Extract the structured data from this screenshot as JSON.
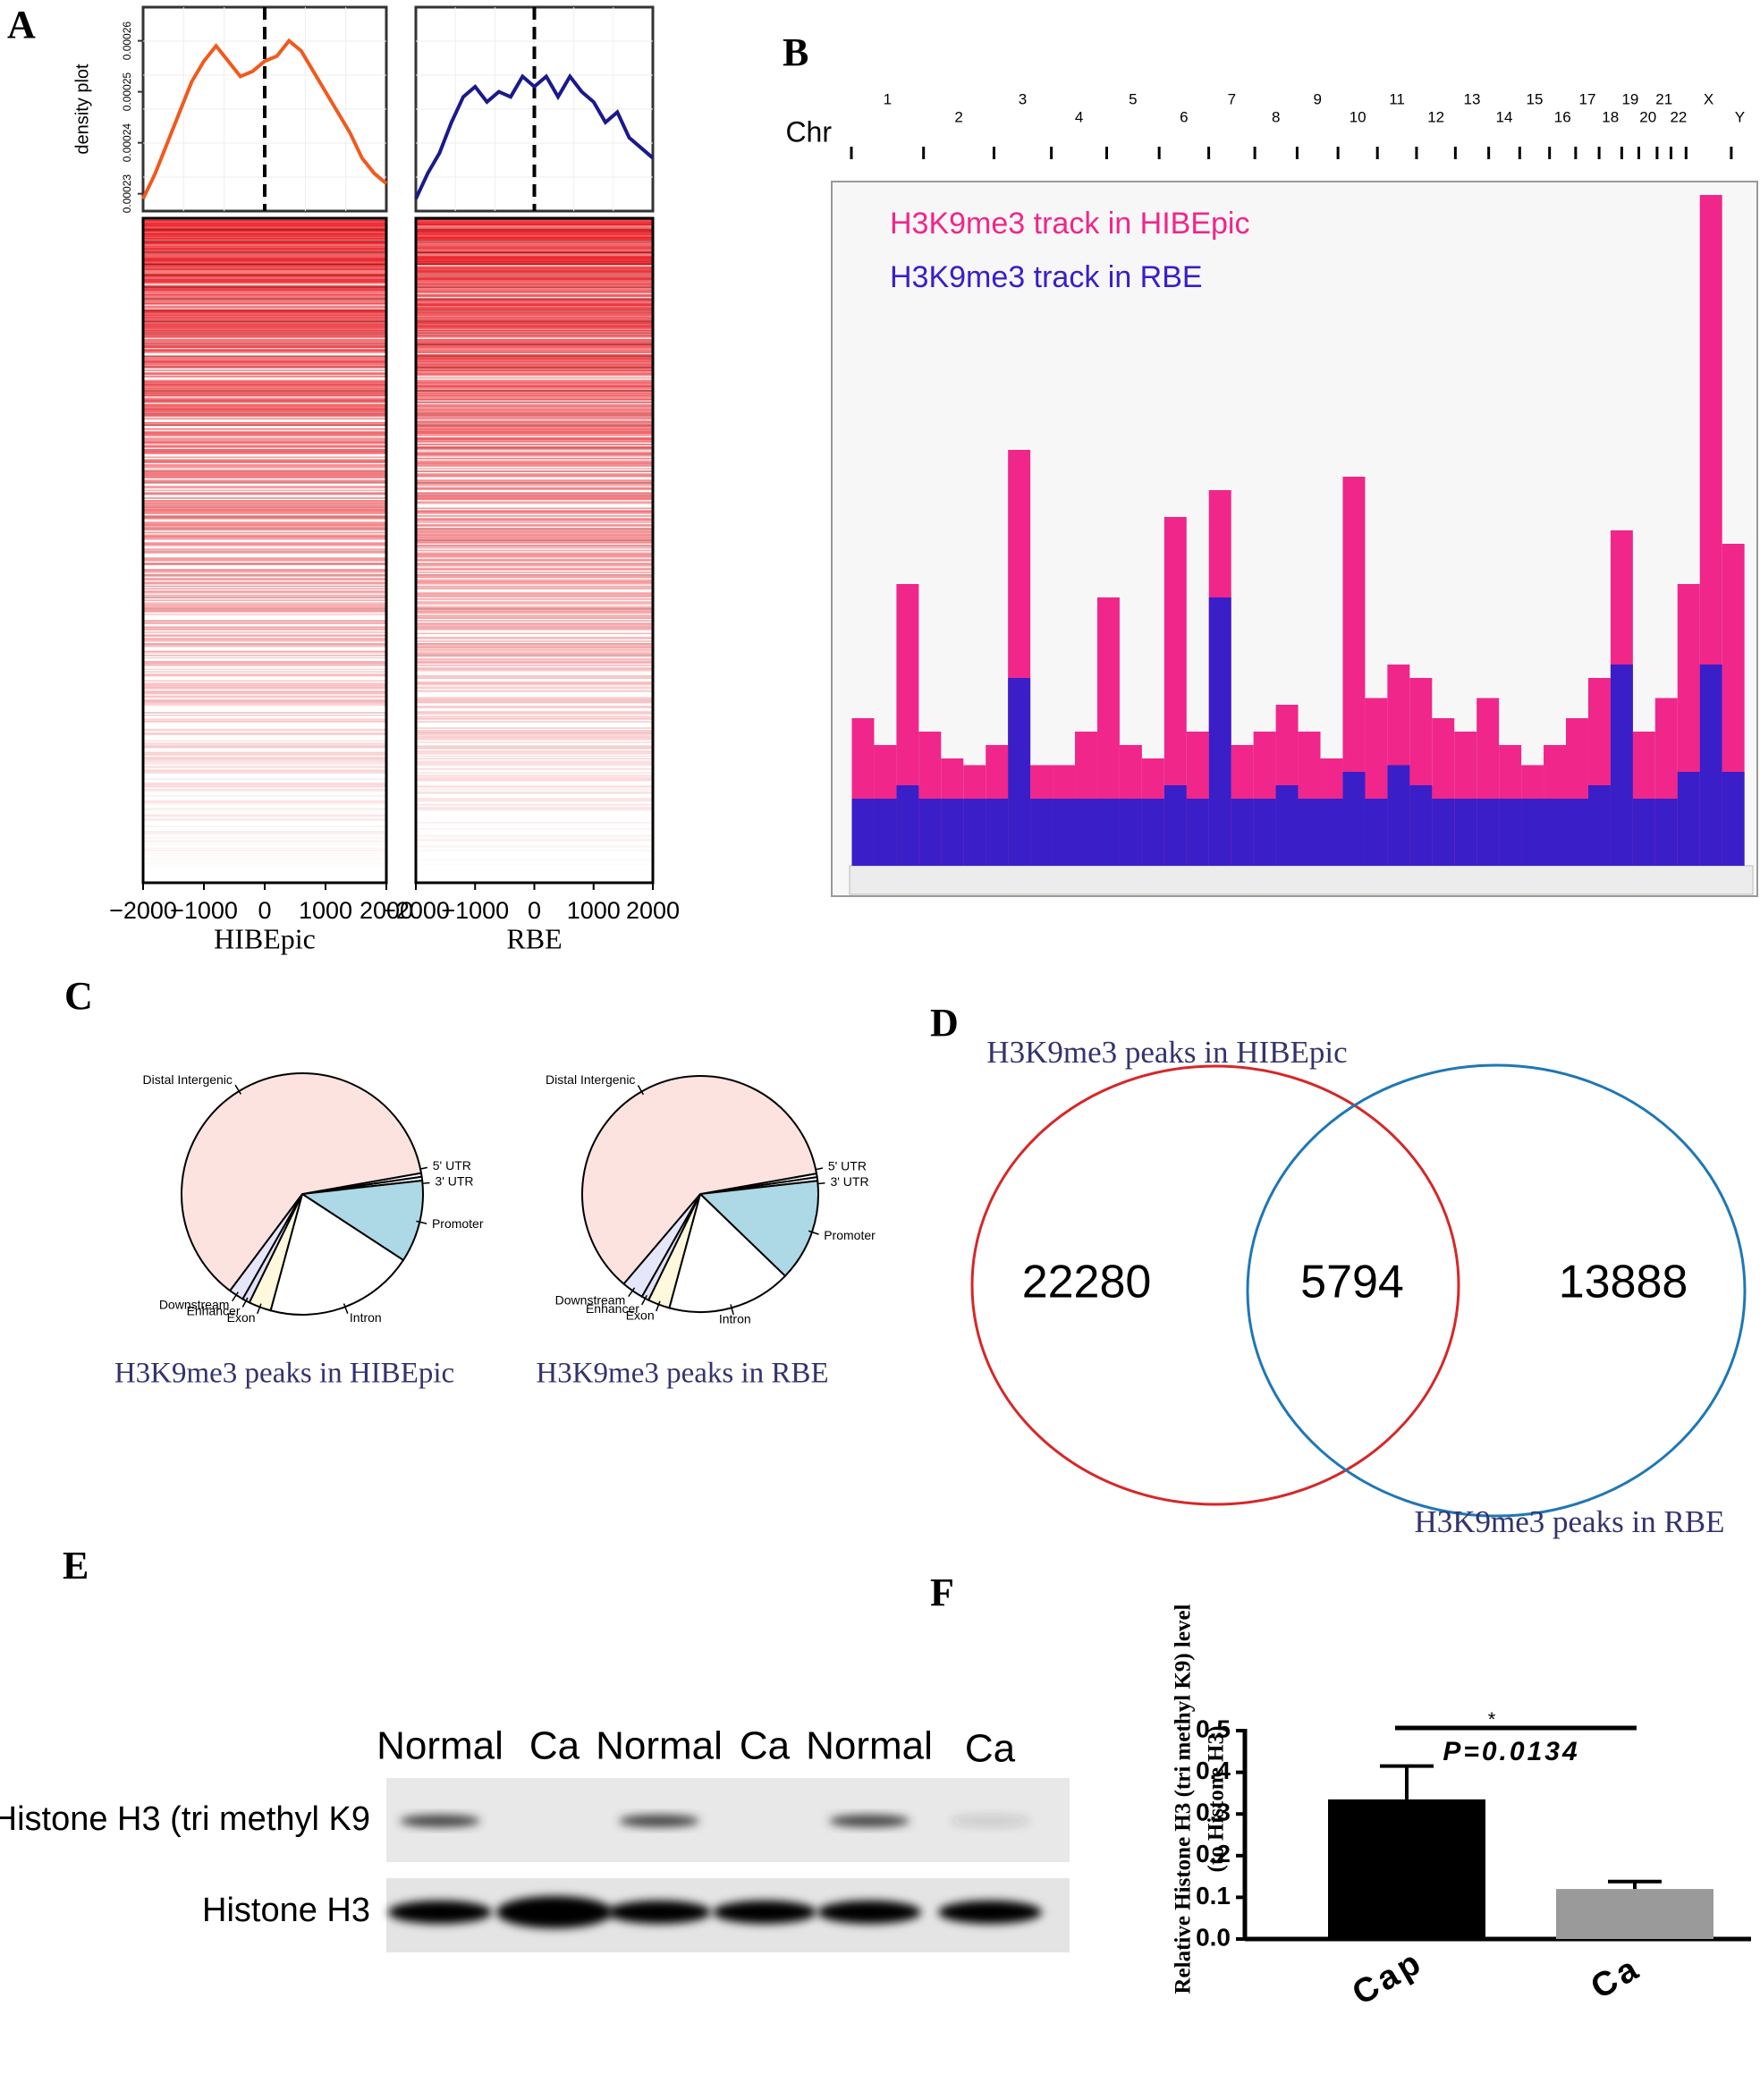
{
  "panel_labels": [
    "A",
    "B",
    "C",
    "D",
    "E",
    "F"
  ],
  "chart_data": [
    {
      "type": "line",
      "ylabel": "density plot",
      "xlabel": "HIBEpic",
      "color": "#f05a1e",
      "x": [
        -2000,
        -1800,
        -1600,
        -1400,
        -1200,
        -1000,
        -800,
        -600,
        -400,
        -200,
        0,
        200,
        400,
        600,
        800,
        1000,
        1200,
        1400,
        1600,
        1800,
        2000
      ],
      "values": [
        0.000229,
        0.000234,
        0.00024,
        0.000246,
        0.000252,
        0.000256,
        0.000259,
        0.000256,
        0.000253,
        0.000254,
        0.000256,
        0.000257,
        0.00026,
        0.000258,
        0.000254,
        0.00025,
        0.000246,
        0.000242,
        0.000237,
        0.000234,
        0.000232
      ],
      "xlim": [
        -2000,
        2000
      ],
      "xticks": [
        {
          "value": -2000,
          "label": "−2000"
        },
        {
          "value": -1000,
          "label": "−1000"
        },
        0,
        1000,
        2000
      ],
      "ylim": [
        0.0002266,
        0.0002666
      ],
      "yticks": [
        0.00023,
        0.00024,
        0.00025,
        0.00026
      ]
    },
    {
      "type": "line",
      "xlabel": "RBE",
      "color": "#1a1a8c",
      "x": [
        -2000,
        -1800,
        -1600,
        -1400,
        -1200,
        -1000,
        -800,
        -600,
        -400,
        -200,
        0,
        200,
        400,
        600,
        800,
        1000,
        1200,
        1400,
        1600,
        1800,
        2000
      ],
      "values": [
        0.000229,
        0.000234,
        0.000238,
        0.000244,
        0.000249,
        0.000251,
        0.000248,
        0.00025,
        0.000249,
        0.000253,
        0.000251,
        0.000253,
        0.000249,
        0.000253,
        0.00025,
        0.000248,
        0.000244,
        0.000246,
        0.000241,
        0.000239,
        0.000237
      ],
      "xlim": [
        -2000,
        2000
      ],
      "xticks": [
        {
          "value": -2000,
          "label": "−2000"
        },
        {
          "value": -1000,
          "label": "−1000"
        },
        0,
        1000,
        2000
      ],
      "ylim": [
        0.0002266,
        0.0002666
      ]
    },
    {
      "type": "track",
      "xlabel": "Chr",
      "legend": "top-left",
      "chromosomes": [
        "1",
        "2",
        "3",
        "4",
        "5",
        "6",
        "7",
        "8",
        "9",
        "10",
        "11",
        "12",
        "13",
        "14",
        "15",
        "16",
        "17",
        "18",
        "19",
        "20",
        "21",
        "22",
        "X",
        "Y"
      ],
      "chromosome_starts": [
        0,
        249,
        492,
        690,
        881,
        1062,
        1233,
        1392,
        1538,
        1679,
        1815,
        1950,
        2084,
        2199,
        2306,
        2409,
        2499,
        2580,
        2658,
        2717,
        2780,
        2828,
        2880,
        3036
      ],
      "xlim": [
        0,
        3095
      ],
      "ylim": [
        0,
        100
      ],
      "x": [
        40,
        117,
        194,
        271,
        348,
        425,
        502,
        579,
        656,
        733,
        810,
        887,
        964,
        1041,
        1118,
        1195,
        1272,
        1349,
        1426,
        1503,
        1580,
        1657,
        1734,
        1811,
        1888,
        1965,
        2042,
        2119,
        2196,
        2273,
        2350,
        2427,
        2504,
        2581,
        2658,
        2735,
        2812,
        2889,
        2966,
        3043
      ],
      "series": [
        {
          "name": "H3K9me3 track in HIBEpic",
          "color": "#f0268a",
          "values": [
            22,
            18,
            42,
            20,
            16,
            15,
            18,
            62,
            15,
            15,
            20,
            40,
            18,
            16,
            52,
            20,
            56,
            18,
            20,
            24,
            20,
            16,
            58,
            25,
            30,
            28,
            22,
            20,
            25,
            18,
            15,
            18,
            22,
            28,
            50,
            20,
            25,
            42,
            100,
            48
          ]
        },
        {
          "name": "H3K9me3 track in RBE",
          "color": "#3a1ec8",
          "values": [
            10,
            10,
            12,
            10,
            10,
            10,
            10,
            28,
            10,
            10,
            10,
            10,
            10,
            10,
            12,
            10,
            40,
            10,
            10,
            12,
            10,
            10,
            14,
            10,
            15,
            12,
            10,
            10,
            10,
            10,
            10,
            10,
            10,
            12,
            30,
            10,
            10,
            14,
            30,
            14
          ]
        }
      ]
    },
    {
      "type": "pie",
      "title": "H3K9me3 peaks in HIBEpic",
      "categories": [
        "5' UTR",
        "3' UTR",
        "Promoter",
        "Intron",
        "Exon",
        "Enhancer",
        "Downstream",
        "Distal Intergenic"
      ],
      "values": [
        0.5,
        0.5,
        11,
        20,
        3,
        1,
        2,
        62
      ],
      "colors": [
        "#ffffff",
        "#ffffff",
        "#add8e6",
        "#ffffff",
        "#fff8dc",
        "#e0e0f8",
        "#e6e6fa",
        "#fde3df"
      ]
    },
    {
      "type": "pie",
      "title": "H3K9me3 peaks in RBE",
      "categories": [
        "5' UTR",
        "3' UTR",
        "Promoter",
        "Intron",
        "Exon",
        "Enhancer",
        "Downstream",
        "Distal Intergenic"
      ],
      "values": [
        0.5,
        0.5,
        14,
        17,
        3,
        1,
        3,
        61
      ],
      "colors": [
        "#ffffff",
        "#ffffff",
        "#add8e6",
        "#ffffff",
        "#fff8dc",
        "#e0e0f8",
        "#e6e6fa",
        "#fde3df"
      ]
    },
    {
      "type": "venn",
      "sets": [
        {
          "name": "H3K9me3 peaks in HIBEpic",
          "color": "#d62728"
        },
        {
          "name": "H3K9me3 peaks in RBE",
          "color": "#1f77b4"
        }
      ],
      "values": [
        22280,
        5794,
        13888
      ]
    },
    {
      "type": "bar",
      "ylabel": [
        "Relative Histone H3 (tri methyl K9) level",
        "(to Histone H3)"
      ],
      "categories": [
        "Cap",
        "Ca"
      ],
      "values": [
        0.335,
        0.12
      ],
      "errors": [
        0.08,
        0.018
      ],
      "colors": [
        "#000000",
        "#9a9a9a"
      ],
      "ylim": [
        0,
        0.5
      ],
      "yticks": [
        {
          "value": 0,
          "label": "0.0"
        },
        0.1,
        0.2,
        0.3,
        0.4,
        0.5
      ],
      "annotations": [
        "*",
        "P=0.0134"
      ]
    }
  ],
  "blot": {
    "lanes": [
      "Normal",
      "Ca",
      "Normal",
      "Ca",
      "Normal",
      "Ca"
    ],
    "rows": [
      "Histone H3 (tri methyl K9",
      "Histone H3"
    ]
  }
}
